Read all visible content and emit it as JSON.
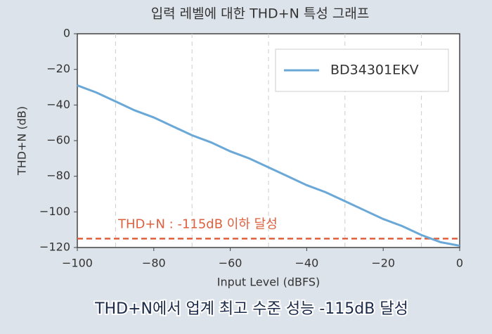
{
  "chart_data": {
    "type": "line",
    "title": "입력 레벨에 대한 THD+N 특성 그래프",
    "caption": "THD+N에서 업계 최고 수준 성능 -115dB 달성",
    "x_label": "Input Level (dBFS)",
    "y_label": "THD+N (dB)",
    "x": [
      -100,
      -95,
      -90,
      -85,
      -80,
      -75,
      -70,
      -65,
      -60,
      -55,
      -50,
      -45,
      -40,
      -35,
      -30,
      -25,
      -20,
      -15,
      -10,
      -5,
      0
    ],
    "series": [
      {
        "name": "BD34301EKV",
        "color": "#6aa8d8",
        "values": [
          -29,
          -33,
          -38,
          -43,
          -47,
          -52,
          -57,
          -61,
          -66,
          -70,
          -75,
          -80,
          -85,
          -89,
          -94,
          -99,
          -104,
          -108,
          -113,
          -117,
          -119
        ]
      }
    ],
    "xlim": [
      -100,
      0
    ],
    "ylim": [
      -120,
      0
    ],
    "xticks": [
      {
        "value": -100,
        "label": "−100"
      },
      {
        "value": -80,
        "label": "−80"
      },
      {
        "value": -60,
        "label": "−60"
      },
      {
        "value": -40,
        "label": "−40"
      },
      {
        "value": -20,
        "label": "−20"
      },
      0
    ],
    "yticks": [
      0,
      {
        "value": -20,
        "label": "−20"
      },
      {
        "value": -40,
        "label": "−40"
      },
      {
        "value": -60,
        "label": "−60"
      },
      {
        "value": -80,
        "label": "−80"
      },
      {
        "value": -100,
        "label": "−100"
      },
      {
        "value": -120,
        "label": "−120"
      }
    ],
    "xgrid": [
      -90,
      -70,
      -50,
      -30,
      -10
    ],
    "reference_line": {
      "value": -115,
      "label": "THD+N : -115dB 이하 달성",
      "color": "#e0603e"
    },
    "legend": "upper right"
  }
}
